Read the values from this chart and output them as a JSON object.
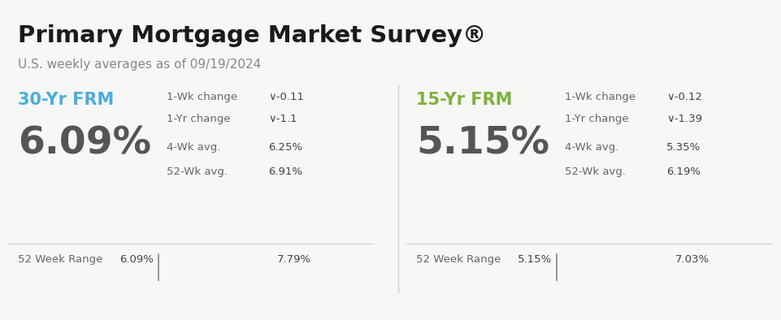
{
  "title": "Primary Mortgage Market Survey®",
  "subtitle": "U.S. weekly averages as of 09/19/2024",
  "bg_color": "#f7f7f5",
  "left": {
    "label": "30-Yr FRM",
    "label_color": "#4aadde",
    "underline_color": "#4aadde",
    "rate": "6.09%",
    "wk_change_label": "1-Wk change",
    "wk_change_value": "∨-0.11",
    "yr_change_label": "1-Yr change",
    "yr_change_value": "∨-1.1",
    "avg4_label": "4-Wk avg.",
    "avg4_value": "6.25%",
    "avg52_label": "52-Wk avg.",
    "avg52_value": "6.91%",
    "range_label": "52 Week Range",
    "range_min": "6.09%",
    "range_max": "7.79%",
    "bar_color": "#4aadde"
  },
  "right": {
    "label": "15-Yr FRM",
    "label_color": "#7db23a",
    "underline_color": "#7db23a",
    "rate": "5.15%",
    "wk_change_label": "1-Wk change",
    "wk_change_value": "∨-0.12",
    "yr_change_label": "1-Yr change",
    "yr_change_value": "∨-1.39",
    "avg4_label": "4-Wk avg.",
    "avg4_value": "5.35%",
    "avg52_label": "52-Wk avg.",
    "avg52_value": "6.19%",
    "range_label": "52 Week Range",
    "range_min": "5.15%",
    "range_max": "7.03%",
    "bar_color": "#7db23a"
  },
  "divider_color": "#d0d0d0",
  "stats_label_color": "#666666",
  "stats_value_color": "#444444",
  "rate_color": "#555555",
  "title_color": "#1a1a1a",
  "subtitle_color": "#888888"
}
